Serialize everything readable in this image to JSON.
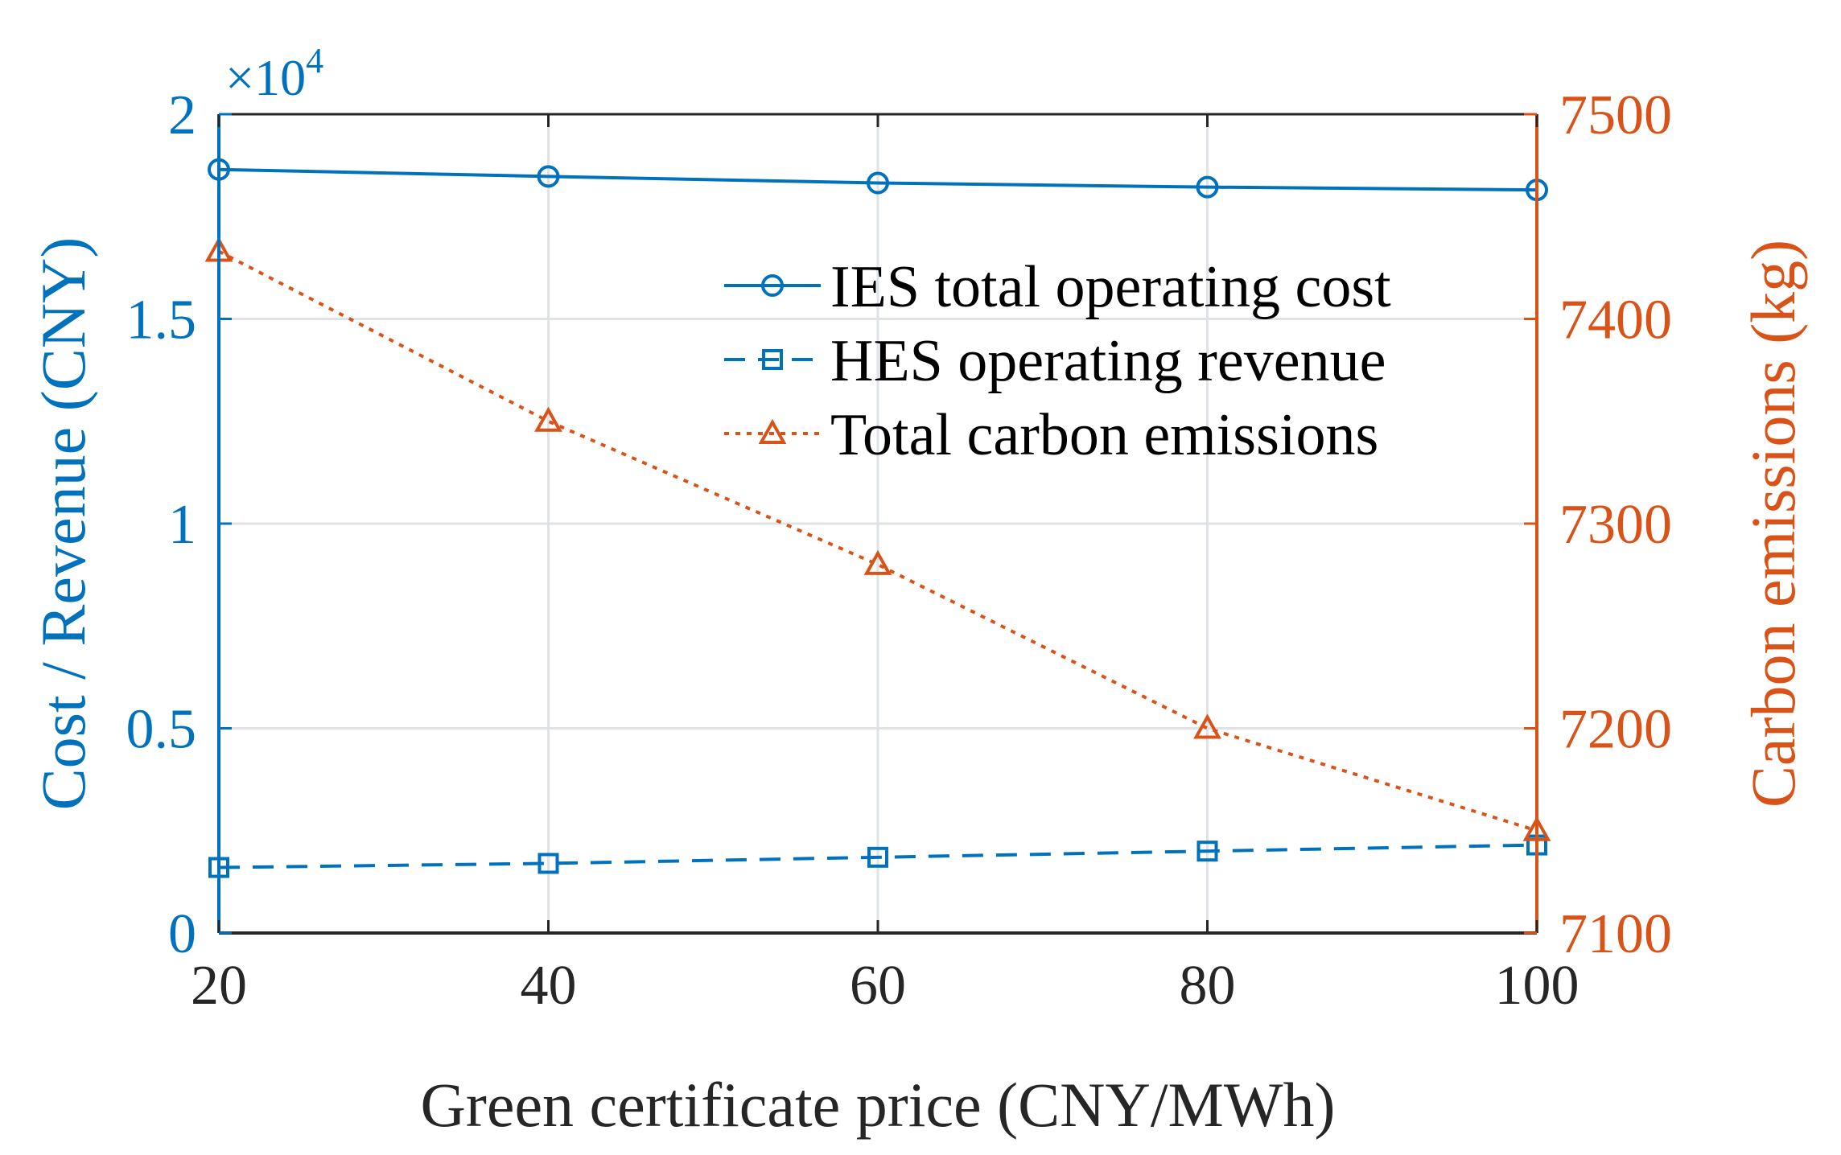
{
  "chart_data": {
    "type": "line",
    "title": "",
    "xlabel": "Green certificate price (CNY/MWh)",
    "ylabel_left": "Cost / Revenue (CNY)",
    "ylabel_right": "Carbon emissions (kg)",
    "left_exponent_label": "×10",
    "left_exponent_power": "4",
    "x": [
      20,
      40,
      60,
      80,
      100
    ],
    "xlim": [
      20,
      100
    ],
    "ylim_left": [
      0,
      20000
    ],
    "ylim_right": [
      7100,
      7500
    ],
    "x_ticks": [
      "20",
      "40",
      "60",
      "80",
      "100"
    ],
    "y_left_ticks": [
      "0",
      "0.5",
      "1",
      "1.5",
      "2"
    ],
    "y_right_ticks": [
      "7100",
      "7200",
      "7300",
      "7400",
      "7500"
    ],
    "grid": true,
    "legend_position": "upper-right",
    "series": [
      {
        "name": "IES total operating cost",
        "axis": "left",
        "marker": "circle",
        "style": "solid",
        "color": "#0072BD",
        "values": [
          18650,
          18480,
          18320,
          18220,
          18150
        ]
      },
      {
        "name": "HES operating revenue",
        "axis": "left",
        "marker": "square",
        "style": "dashed",
        "color": "#0072BD",
        "values": [
          1600,
          1700,
          1850,
          2000,
          2150
        ]
      },
      {
        "name": "Total carbon emissions",
        "axis": "right",
        "marker": "triangle",
        "style": "dotted",
        "color": "#D95319",
        "values": [
          7433,
          7350,
          7280,
          7200,
          7150
        ]
      }
    ]
  }
}
